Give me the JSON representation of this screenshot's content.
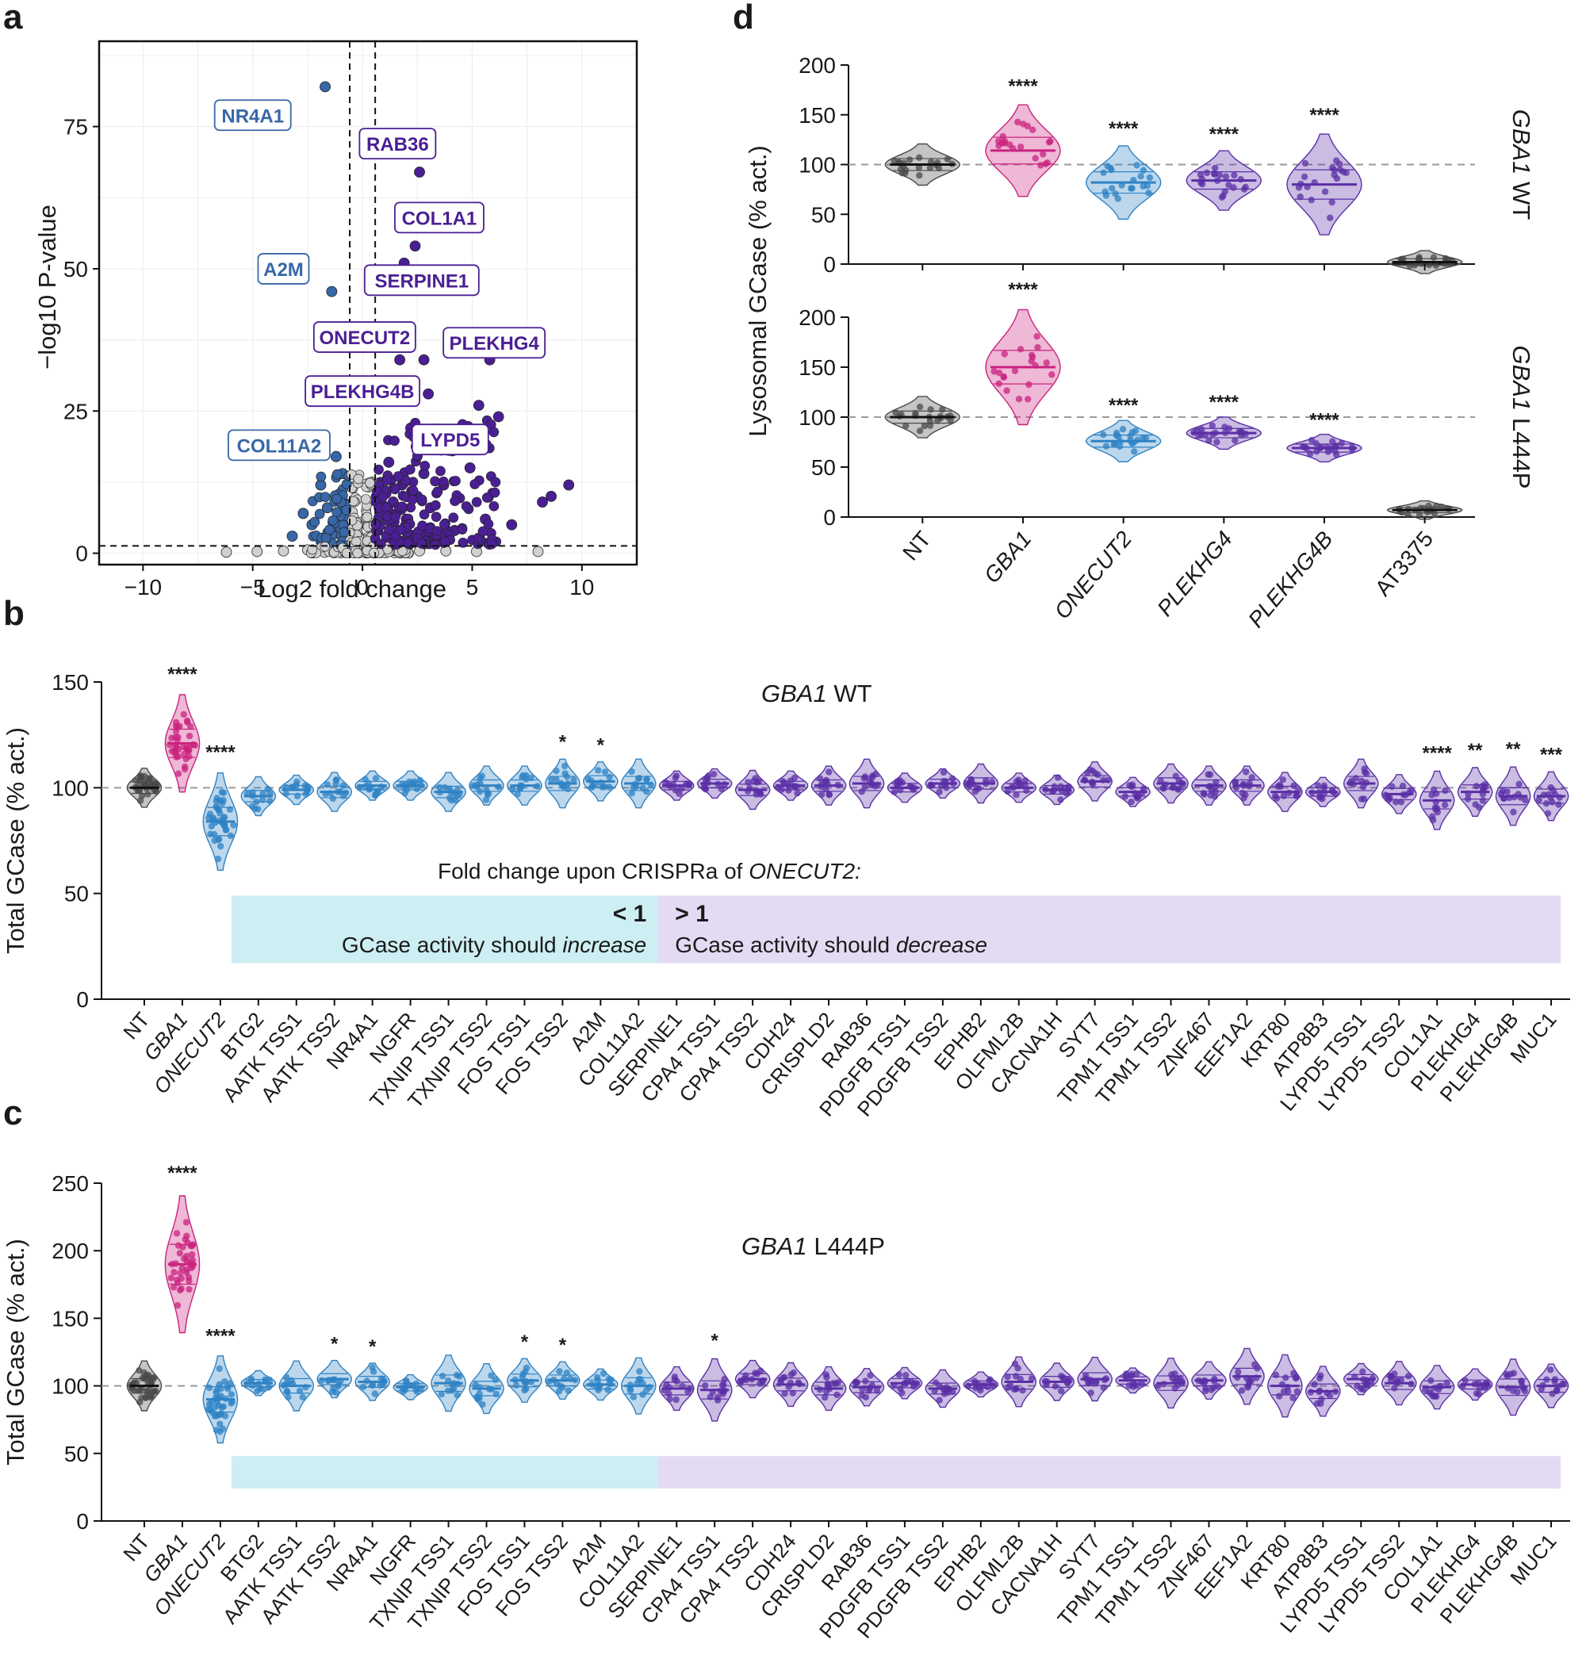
{
  "colors": {
    "nt": "#4a4a4a",
    "gba1": "#c9237e",
    "blue": "#2e82c4",
    "purple": "#5a2fa6",
    "dark_blue": "#2b5f9e",
    "box_blue": "#cdeef2",
    "box_purple": "#e3dbf3",
    "volcano_purple": "#4b1f94",
    "volcano_blue": "#3867a7",
    "volcano_grey": "#d0d0d0"
  },
  "panels": {
    "a": "a",
    "b": "b",
    "c": "c",
    "d": "d"
  },
  "chart_data": [
    {
      "id": "a",
      "type": "scatter",
      "title": "",
      "xlabel": "Log2 fold change",
      "ylabel": "−log10 P-value",
      "xlim": [
        -12,
        12.5
      ],
      "ylim": [
        -2,
        90
      ],
      "xticks": [
        {
          "v": -10,
          "t": "−10"
        },
        {
          "v": -5,
          "t": "−5"
        },
        {
          "v": 0,
          "t": "0"
        },
        {
          "v": 5,
          "t": "5"
        },
        {
          "v": 10,
          "t": "10"
        }
      ],
      "yticks": [
        {
          "v": 0,
          "t": "0"
        },
        {
          "v": 25,
          "t": "25"
        },
        {
          "v": 50,
          "t": "50"
        },
        {
          "v": 75,
          "t": "75"
        }
      ],
      "thresholds": {
        "x": [
          -0.58,
          0.58
        ],
        "y": 1.3
      },
      "labeled_points": [
        {
          "label": "NR4A1",
          "x": -1.7,
          "y": 82,
          "group": "down"
        },
        {
          "label": "RAB36",
          "x": 2.6,
          "y": 67,
          "group": "up"
        },
        {
          "label": "COL1A1",
          "x": 2.4,
          "y": 54,
          "group": "up"
        },
        {
          "label": "A2M",
          "x": -1.4,
          "y": 46,
          "group": "down"
        },
        {
          "label": "SERPINE1",
          "x": 1.9,
          "y": 51,
          "group": "up"
        },
        {
          "label": "ONECUT2",
          "x": 1.7,
          "y": 34,
          "group": "up"
        },
        {
          "label": "PLEKHG4",
          "x": 5.8,
          "y": 34,
          "group": "up"
        },
        {
          "label": "PLEKHG4B",
          "x": 2.8,
          "y": 34,
          "group": "up"
        },
        {
          "label": "COL11A2",
          "x": -1.2,
          "y": 17,
          "group": "down"
        },
        {
          "label": "LYPD5",
          "x": 3.0,
          "y": 28,
          "group": "up"
        }
      ],
      "other_points": [
        {
          "x": 9.4,
          "y": 12,
          "group": "up"
        },
        {
          "x": 8.6,
          "y": 10,
          "group": "up"
        },
        {
          "x": 8.2,
          "y": 9,
          "group": "up"
        },
        {
          "x": 6.2,
          "y": 24,
          "group": "up"
        },
        {
          "x": 5.3,
          "y": 26,
          "group": "up"
        },
        {
          "x": 4.9,
          "y": 15,
          "group": "up"
        },
        {
          "x": 4.5,
          "y": 21,
          "group": "up"
        },
        {
          "x": 4.1,
          "y": 18,
          "group": "up"
        },
        {
          "x": 3.7,
          "y": 12,
          "group": "up"
        },
        {
          "x": 3.4,
          "y": 19,
          "group": "up"
        },
        {
          "x": 3.1,
          "y": 8,
          "group": "up"
        },
        {
          "x": 2.8,
          "y": 14,
          "group": "up"
        },
        {
          "x": 2.5,
          "y": 10,
          "group": "up"
        },
        {
          "x": 2.2,
          "y": 22,
          "group": "up"
        },
        {
          "x": 2.0,
          "y": 6,
          "group": "up"
        },
        {
          "x": 1.8,
          "y": 12,
          "group": "up"
        },
        {
          "x": 1.6,
          "y": 4,
          "group": "up"
        },
        {
          "x": 1.4,
          "y": 9,
          "group": "up"
        },
        {
          "x": 1.2,
          "y": 16,
          "group": "up"
        },
        {
          "x": 1.1,
          "y": 3,
          "group": "up"
        },
        {
          "x": 0.9,
          "y": 7,
          "group": "up"
        },
        {
          "x": 0.8,
          "y": 11,
          "group": "up"
        },
        {
          "x": 0.7,
          "y": 4,
          "group": "up"
        },
        {
          "x": 5.6,
          "y": 6,
          "group": "up"
        },
        {
          "x": 6.8,
          "y": 5,
          "group": "up"
        },
        {
          "x": 4.2,
          "y": 4,
          "group": "up"
        },
        {
          "x": 3.3,
          "y": 3,
          "group": "up"
        },
        {
          "x": -0.8,
          "y": 6,
          "group": "down"
        },
        {
          "x": -1.0,
          "y": 10,
          "group": "down"
        },
        {
          "x": -1.3,
          "y": 4,
          "group": "down"
        },
        {
          "x": -1.6,
          "y": 8,
          "group": "down"
        },
        {
          "x": -1.9,
          "y": 12,
          "group": "down"
        },
        {
          "x": -2.3,
          "y": 5,
          "group": "down"
        },
        {
          "x": -2.7,
          "y": 7,
          "group": "down"
        },
        {
          "x": -3.2,
          "y": 3,
          "group": "down"
        },
        {
          "x": -0.9,
          "y": 14,
          "group": "down"
        },
        {
          "x": -6.2,
          "y": 0.2,
          "group": "ns"
        },
        {
          "x": -4.8,
          "y": 0.3,
          "group": "ns"
        },
        {
          "x": -3.6,
          "y": 0.4,
          "group": "ns"
        },
        {
          "x": -2.5,
          "y": 0.6,
          "group": "ns"
        },
        {
          "x": -1.5,
          "y": 0.5,
          "group": "ns"
        },
        {
          "x": -0.6,
          "y": 0.8,
          "group": "ns"
        },
        {
          "x": -0.2,
          "y": 1.0,
          "group": "ns"
        },
        {
          "x": 0.2,
          "y": 0.9,
          "group": "ns"
        },
        {
          "x": 0.6,
          "y": 0.7,
          "group": "ns"
        },
        {
          "x": 1.5,
          "y": 0.5,
          "group": "ns"
        },
        {
          "x": 2.6,
          "y": 0.4,
          "group": "ns"
        },
        {
          "x": 3.8,
          "y": 0.4,
          "group": "ns"
        },
        {
          "x": 5.2,
          "y": 0.3,
          "group": "ns"
        },
        {
          "x": 8.0,
          "y": 0.3,
          "group": "ns"
        }
      ]
    },
    {
      "id": "b",
      "type": "violin",
      "title": "GBA1 WT",
      "title_italic": "GBA1",
      "title_rest": " WT",
      "xlabel": "",
      "ylabel": "Total GCase (% act.)",
      "ylim": [
        0,
        150
      ],
      "yticks": [
        0,
        50,
        100,
        150
      ],
      "reference_line": 100,
      "categories": [
        "NT",
        "GBA1",
        "ONECUT2",
        "BTG2",
        "AATK TSS1",
        "AATK TSS2",
        "NR4A1",
        "NGFR",
        "TXNIP TSS1",
        "TXNIP TSS2",
        "FOS TSS1",
        "FOS TSS2",
        "A2M",
        "COL11A2",
        "SERPINE1",
        "CPA4 TSS1",
        "CPA4 TSS2",
        "CDH24",
        "CRISPLD2",
        "RAB36",
        "PDGFB TSS1",
        "PDGFB TSS2",
        "EPHB2",
        "OLFML2B",
        "CACNA1H",
        "SYT7",
        "TPM1 TSS1",
        "TPM1 TSS2",
        "ZNF467",
        "EEF1A2",
        "KRT80",
        "ATP8B3",
        "LYPD5 TSS1",
        "LYPD5 TSS2",
        "COL1A1",
        "PLEKHG4",
        "PLEKHG4B",
        "MUC1"
      ],
      "medians": [
        100,
        121,
        84,
        96,
        99,
        98,
        101,
        101,
        98,
        101,
        101,
        102,
        103,
        102,
        101,
        102,
        99,
        101,
        101,
        102,
        100,
        102,
        102,
        100,
        99,
        103,
        98,
        102,
        101,
        101,
        98,
        98,
        102,
        97,
        94,
        98,
        96,
        96
      ],
      "spread": [
        4,
        10,
        10,
        4,
        3,
        4,
        3,
        3,
        4,
        4,
        4,
        5,
        4,
        5,
        3,
        3,
        4,
        3,
        4,
        5,
        3,
        3,
        4,
        3,
        3,
        4,
        3,
        4,
        4,
        4,
        4,
        3,
        5,
        4,
        6,
        5,
        6,
        5
      ],
      "significance": [
        "",
        "****",
        "****",
        "",
        "",
        "",
        "",
        "",
        "",
        "",
        "",
        "*",
        "*",
        "",
        "",
        "",
        "",
        "",
        "",
        "",
        "",
        "",
        "",
        "",
        "",
        "",
        "",
        "",
        "",
        "",
        "",
        "",
        "",
        "",
        "****",
        "**",
        "**",
        "***"
      ],
      "annotation": {
        "header_prefix": "Fold change upon CRISPRa of ",
        "header_gene": "ONECUT2:",
        "left_sign": "< 1",
        "left_text": "GCase activity should ",
        "left_emph": "increase",
        "right_sign": "> 1",
        "right_text": "GCase activity should ",
        "right_emph": "decrease"
      }
    },
    {
      "id": "c",
      "type": "violin",
      "title": "GBA1 L444P",
      "title_italic": "GBA1",
      "title_rest": " L444P",
      "xlabel": "",
      "ylabel": "Total GCase (% act.)",
      "ylim": [
        0,
        250
      ],
      "yticks": [
        0,
        50,
        100,
        150,
        200,
        250
      ],
      "reference_line": 100,
      "categories": [
        "NT",
        "GBA1",
        "ONECUT2",
        "BTG2",
        "AATK TSS1",
        "AATK TSS2",
        "NR4A1",
        "NGFR",
        "TXNIP TSS1",
        "TXNIP TSS2",
        "FOS TSS1",
        "FOS TSS2",
        "A2M",
        "COL11A2",
        "SERPINE1",
        "CPA4 TSS1",
        "CPA4 TSS2",
        "CDH24",
        "CRISPLD2",
        "RAB36",
        "PDGFB TSS1",
        "PDGFB TSS2",
        "EPHB2",
        "OLFML2B",
        "CACNA1H",
        "SYT7",
        "TPM1 TSS1",
        "TPM1 TSS2",
        "ZNF467",
        "EEF1A2",
        "KRT80",
        "ATP8B3",
        "LYPD5 TSS1",
        "LYPD5 TSS2",
        "COL1A1",
        "PLEKHG4",
        "PLEKHG4B",
        "MUC1"
      ],
      "medians": [
        100,
        190,
        90,
        102,
        100,
        105,
        103,
        99,
        102,
        98,
        104,
        104,
        101,
        100,
        98,
        97,
        105,
        101,
        98,
        99,
        102,
        98,
        101,
        103,
        103,
        105,
        104,
        102,
        104,
        107,
        100,
        96,
        105,
        102,
        99,
        101,
        99,
        100
      ],
      "spread": [
        8,
        22,
        14,
        4,
        8,
        6,
        6,
        4,
        9,
        8,
        7,
        6,
        5,
        9,
        7,
        10,
        6,
        7,
        7,
        6,
        5,
        6,
        4,
        8,
        6,
        7,
        4,
        8,
        6,
        9,
        10,
        8,
        5,
        7,
        7,
        5,
        9,
        7
      ],
      "significance": [
        "",
        "****",
        "****",
        "",
        "",
        "*",
        "*",
        "",
        "",
        "",
        "*",
        "*",
        "",
        "",
        "",
        "*",
        "",
        "",
        "",
        "",
        "",
        "",
        "",
        "",
        "",
        "",
        "",
        "",
        "",
        "",
        "",
        "",
        "",
        "",
        "",
        "",
        "",
        ""
      ]
    },
    {
      "id": "d",
      "type": "violin",
      "title": "",
      "ylabel": "Lysosomal GCase (% act.)",
      "categories": [
        "NT",
        "GBA1",
        "ONECUT2",
        "PLEKHG4",
        "PLEKHG4B",
        "AT3375"
      ],
      "subplots": [
        {
          "label_italic": "GBA1",
          "label_rest": " WT",
          "ylim": [
            0,
            200
          ],
          "yticks": [
            0,
            50,
            100,
            150,
            200
          ],
          "reference_line": 100,
          "medians": [
            100,
            114,
            82,
            84,
            80,
            2
          ],
          "spread": [
            9,
            20,
            16,
            13,
            22,
            5
          ],
          "significance": [
            "",
            "****",
            "****",
            "****",
            "****",
            ""
          ]
        },
        {
          "label_italic": "GBA1",
          "label_rest": " L444P",
          "ylim": [
            0,
            200
          ],
          "yticks": [
            0,
            50,
            100,
            150,
            200
          ],
          "reference_line": 100,
          "medians": [
            100,
            150,
            76,
            84,
            69,
            7
          ],
          "spread": [
            9,
            25,
            9,
            7,
            6,
            4
          ],
          "significance": [
            "",
            "****",
            "****",
            "****",
            "****",
            ""
          ]
        }
      ]
    }
  ]
}
